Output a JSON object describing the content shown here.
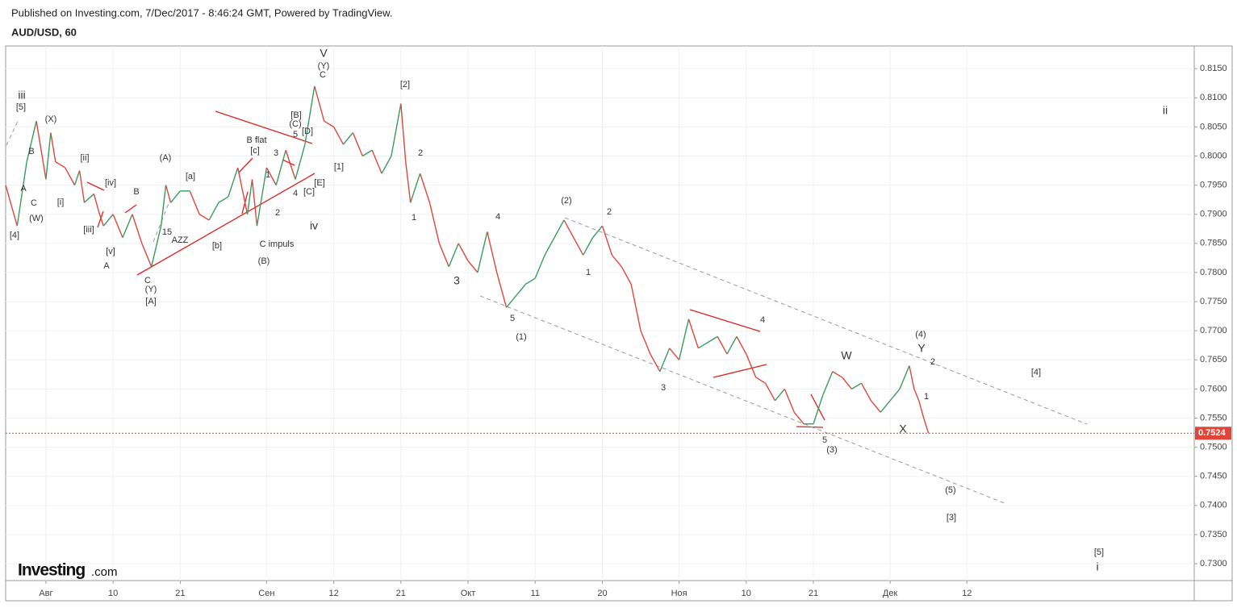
{
  "chart_data": {
    "type": "line",
    "subtitle": "Published on Investing.com, 7/Dec/2017 - 8:46:24 GMT, Powered by TradingView.",
    "title": "AUD/USD, 60",
    "logo": {
      "brand": "Investing",
      "suffix": ".com"
    },
    "x": [
      -4.2,
      -3,
      -2,
      -1,
      0,
      0.5,
      1,
      2,
      3,
      3.5,
      4,
      5,
      5.5,
      6,
      7,
      8,
      9,
      10,
      11,
      12,
      12.5,
      13,
      14,
      15,
      16,
      17,
      18,
      19,
      20,
      21,
      21.5,
      22,
      23,
      24,
      25,
      26,
      27,
      28,
      29,
      30,
      31,
      32,
      33,
      34,
      35,
      36,
      37,
      37.5,
      38,
      39,
      40,
      41,
      42,
      43,
      44,
      45,
      46,
      47,
      48,
      49,
      50,
      51,
      52,
      53,
      54,
      55,
      56,
      57,
      58,
      59,
      60,
      61,
      62,
      63,
      64,
      65,
      66,
      67,
      68,
      69,
      70,
      71,
      72,
      73,
      74,
      75,
      76,
      77,
      78,
      79,
      80,
      81,
      82,
      83,
      84,
      85,
      86,
      87,
      88,
      89,
      90,
      90.5,
      91,
      91.5,
      92
    ],
    "values": [
      0.795,
      0.788,
      0.799,
      0.806,
      0.796,
      0.804,
      0.799,
      0.798,
      0.795,
      0.7975,
      0.792,
      0.7935,
      0.7905,
      0.788,
      0.79,
      0.786,
      0.79,
      0.785,
      0.781,
      0.788,
      0.795,
      0.792,
      0.794,
      0.794,
      0.79,
      0.789,
      0.792,
      0.793,
      0.798,
      0.79,
      0.796,
      0.788,
      0.798,
      0.795,
      0.801,
      0.796,
      0.802,
      0.812,
      0.806,
      0.805,
      0.802,
      0.804,
      0.8,
      0.801,
      0.797,
      0.8,
      0.809,
      0.799,
      0.792,
      0.797,
      0.792,
      0.785,
      0.781,
      0.785,
      0.782,
      0.78,
      0.787,
      0.78,
      0.774,
      0.776,
      0.778,
      0.779,
      0.783,
      0.786,
      0.789,
      0.786,
      0.783,
      0.786,
      0.788,
      0.783,
      0.781,
      0.778,
      0.77,
      0.766,
      0.763,
      0.767,
      0.765,
      0.772,
      0.767,
      0.768,
      0.769,
      0.766,
      0.769,
      0.766,
      0.762,
      0.761,
      0.758,
      0.76,
      0.756,
      0.754,
      0.754,
      0.759,
      0.763,
      0.762,
      0.76,
      0.761,
      0.758,
      0.756,
      0.758,
      0.76,
      0.764,
      0.76,
      0.758,
      0.755,
      0.7524
    ],
    "up_color": "#3a9b5c",
    "down_color": "#e0453a",
    "last_price": {
      "value": 0.7524,
      "label": "0.7524"
    },
    "xlim": [
      -4.2,
      119.7
    ],
    "ylim": [
      0.7271,
      0.8189
    ],
    "grid": true,
    "xticks": [
      {
        "value": 0,
        "label": "Авг"
      },
      {
        "value": 7,
        "label": "10"
      },
      {
        "value": 14,
        "label": "21"
      },
      {
        "value": 23,
        "label": "Сен"
      },
      {
        "value": 30,
        "label": "12"
      },
      {
        "value": 37,
        "label": "21"
      },
      {
        "value": 44,
        "label": "Окт"
      },
      {
        "value": 51,
        "label": "11"
      },
      {
        "value": 58,
        "label": "20"
      },
      {
        "value": 66,
        "label": "Ноя"
      },
      {
        "value": 73,
        "label": "10"
      },
      {
        "value": 80,
        "label": "21"
      },
      {
        "value": 88,
        "label": "Дек"
      },
      {
        "value": 96,
        "label": "12"
      }
    ],
    "yticks": [
      {
        "value": 0.815,
        "label": "0.8150"
      },
      {
        "value": 0.81,
        "label": "0.8100"
      },
      {
        "value": 0.805,
        "label": "0.8050"
      },
      {
        "value": 0.8,
        "label": "0.8000"
      },
      {
        "value": 0.795,
        "label": "0.7950"
      },
      {
        "value": 0.79,
        "label": "0.7900"
      },
      {
        "value": 0.785,
        "label": "0.7850"
      },
      {
        "value": 0.78,
        "label": "0.7800"
      },
      {
        "value": 0.775,
        "label": "0.7750"
      },
      {
        "value": 0.77,
        "label": "0.7700"
      },
      {
        "value": 0.765,
        "label": "0.7650"
      },
      {
        "value": 0.76,
        "label": "0.7600"
      },
      {
        "value": 0.755,
        "label": "0.7550"
      },
      {
        "value": 0.75,
        "label": "0.7500"
      },
      {
        "value": 0.745,
        "label": "0.7450"
      },
      {
        "value": 0.74,
        "label": "0.7400"
      },
      {
        "value": 0.735,
        "label": "0.7350"
      },
      {
        "value": 0.73,
        "label": "0.7300"
      }
    ],
    "annotations": [
      "iii",
      "[5]",
      "(X)",
      "B",
      "A",
      "C",
      "(W)",
      "[4]",
      "[ii]",
      "[i]",
      "[iv]",
      "[iii]",
      "B",
      "[v]",
      "A",
      "(A)",
      "[a]",
      "15",
      "AZZ",
      "C",
      "(Y)",
      "[A]",
      "[b]",
      "B flat",
      "[c]",
      "3",
      "1",
      "2",
      "C impuls",
      "(B)",
      "[B]",
      "(C)",
      "[D]",
      "5",
      "4",
      "[C]",
      "[E]",
      "iv",
      "V",
      "(Y)",
      "C",
      "[2]",
      "[1]",
      "2",
      "1",
      "3",
      "4",
      "5",
      "(1)",
      "(2)",
      "2",
      "1",
      "3",
      "4",
      "W",
      "(4)",
      "Y",
      "2",
      "1",
      "X",
      "5",
      "(3)",
      "[4]",
      "(5)",
      "[3]",
      "[5]",
      "i",
      "ii"
    ]
  }
}
